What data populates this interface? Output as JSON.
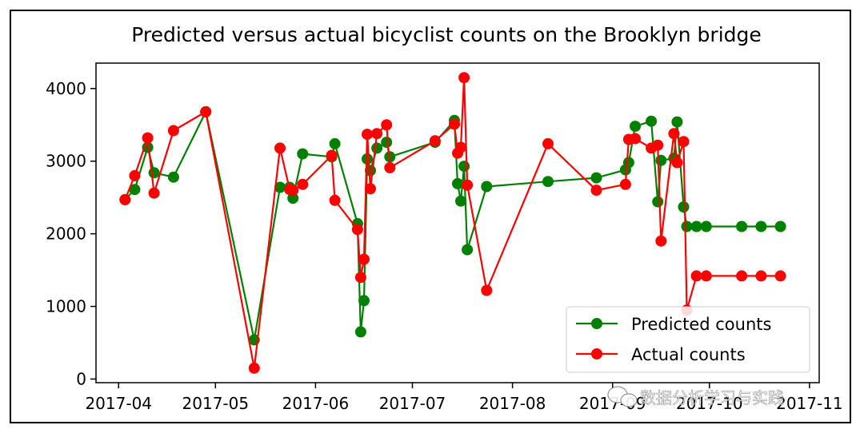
{
  "chart_data": {
    "type": "line",
    "title": "Predicted versus actual bicyclist counts on the Brooklyn bridge",
    "xlabel": "",
    "ylabel": "",
    "x_ticks": [
      "2017-04",
      "2017-05",
      "2017-06",
      "2017-07",
      "2017-08",
      "2017-09",
      "2017-10",
      "2017-11"
    ],
    "x_tick_dates": [
      "2017-04-01",
      "2017-05-01",
      "2017-06-01",
      "2017-07-01",
      "2017-08-01",
      "2017-09-01",
      "2017-10-01",
      "2017-11-01"
    ],
    "xlim": [
      "2017-03-25",
      "2017-11-04"
    ],
    "y_ticks": [
      0,
      1000,
      2000,
      3000,
      4000
    ],
    "ylim": [
      -50,
      4350
    ],
    "grid": false,
    "legend_position": "lower-right",
    "x": [
      "2017-04-03",
      "2017-04-06",
      "2017-04-10",
      "2017-04-12",
      "2017-04-18",
      "2017-04-28",
      "2017-05-13",
      "2017-05-21",
      "2017-05-24",
      "2017-05-25",
      "2017-05-28",
      "2017-06-06",
      "2017-06-07",
      "2017-06-14",
      "2017-06-15",
      "2017-06-16",
      "2017-06-17",
      "2017-06-18",
      "2017-06-20",
      "2017-06-23",
      "2017-06-24",
      "2017-07-08",
      "2017-07-14",
      "2017-07-15",
      "2017-07-16",
      "2017-07-17",
      "2017-07-18",
      "2017-07-24",
      "2017-08-12",
      "2017-08-27",
      "2017-09-05",
      "2017-09-06",
      "2017-09-08",
      "2017-09-13",
      "2017-09-15",
      "2017-09-16",
      "2017-09-20",
      "2017-09-21",
      "2017-09-23",
      "2017-09-24",
      "2017-09-27",
      "2017-09-30",
      "2017-10-11",
      "2017-10-17",
      "2017-10-23"
    ],
    "series": [
      {
        "name": "Predicted counts",
        "color": "#008000",
        "values": [
          2470,
          2610,
          3190,
          2840,
          2780,
          3680,
          540,
          2640,
          2640,
          2490,
          3100,
          3060,
          3240,
          2140,
          650,
          1080,
          3030,
          2870,
          3180,
          3260,
          3060,
          3260,
          3560,
          2690,
          2450,
          2930,
          1780,
          2650,
          2720,
          2770,
          2880,
          2980,
          3480,
          3550,
          2440,
          3010,
          3040,
          3540,
          2370,
          2100,
          2100,
          2100,
          2100,
          2100,
          2100
        ]
      },
      {
        "name": "Actual counts",
        "color": "#ff0000",
        "values": [
          2470,
          2800,
          3320,
          2560,
          3420,
          3680,
          150,
          3180,
          2610,
          2600,
          2680,
          3080,
          2460,
          2060,
          1400,
          1650,
          3370,
          2620,
          3380,
          3500,
          2910,
          3280,
          3510,
          3110,
          3190,
          4150,
          2670,
          1220,
          3240,
          2600,
          2680,
          3300,
          3310,
          3180,
          3220,
          1900,
          3380,
          2980,
          3270,
          950,
          1420,
          1420,
          1420,
          1420,
          1420
        ]
      }
    ]
  },
  "watermark": {
    "icon": "wechat-icon",
    "text": "数据分析学习与实践"
  }
}
